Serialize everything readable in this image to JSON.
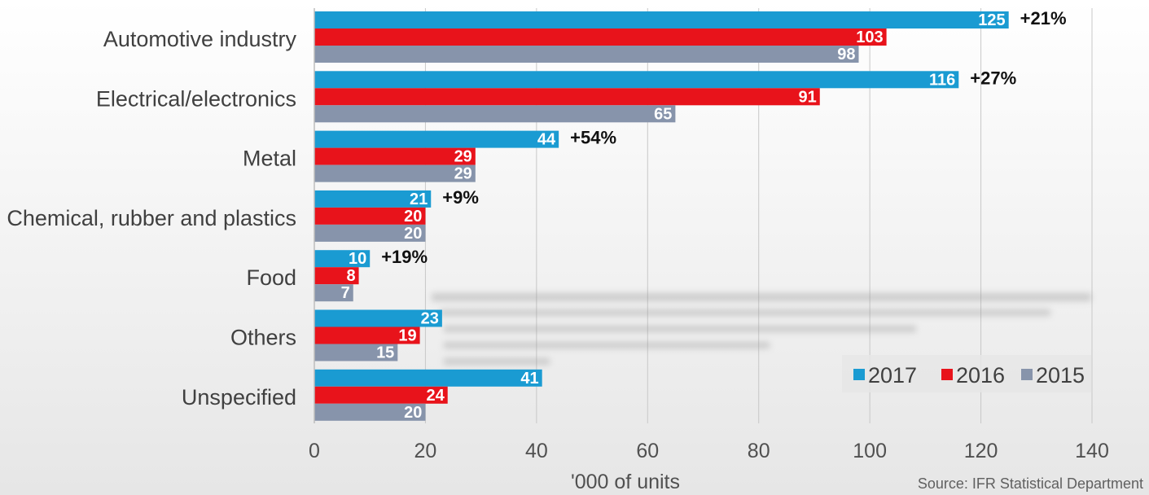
{
  "chart_data": {
    "type": "bar",
    "orientation": "horizontal",
    "categories": [
      "Automotive industry",
      "Electrical/electronics",
      "Metal",
      "Chemical, rubber and plastics",
      "Food",
      "Others",
      "Unspecified"
    ],
    "series": [
      {
        "name": "2017",
        "color": "#1a9bd2",
        "values": [
          125,
          116,
          44,
          21,
          10,
          23,
          41
        ]
      },
      {
        "name": "2016",
        "color": "#e8131b",
        "values": [
          103,
          91,
          29,
          20,
          8,
          19,
          24
        ]
      },
      {
        "name": "2015",
        "color": "#8794ab",
        "values": [
          98,
          65,
          29,
          20,
          7,
          15,
          20
        ]
      }
    ],
    "growth_labels": [
      "+21%",
      "+27%",
      "+54%",
      "+9%",
      "+19%",
      "",
      ""
    ],
    "xlabel": "'000 of units",
    "xlim": [
      0,
      140
    ],
    "xticks": [
      0,
      20,
      40,
      60,
      80,
      100,
      120,
      140
    ],
    "grid": true,
    "legend_position": "bottom-right",
    "source": "Source: IFR Statistical Department"
  }
}
